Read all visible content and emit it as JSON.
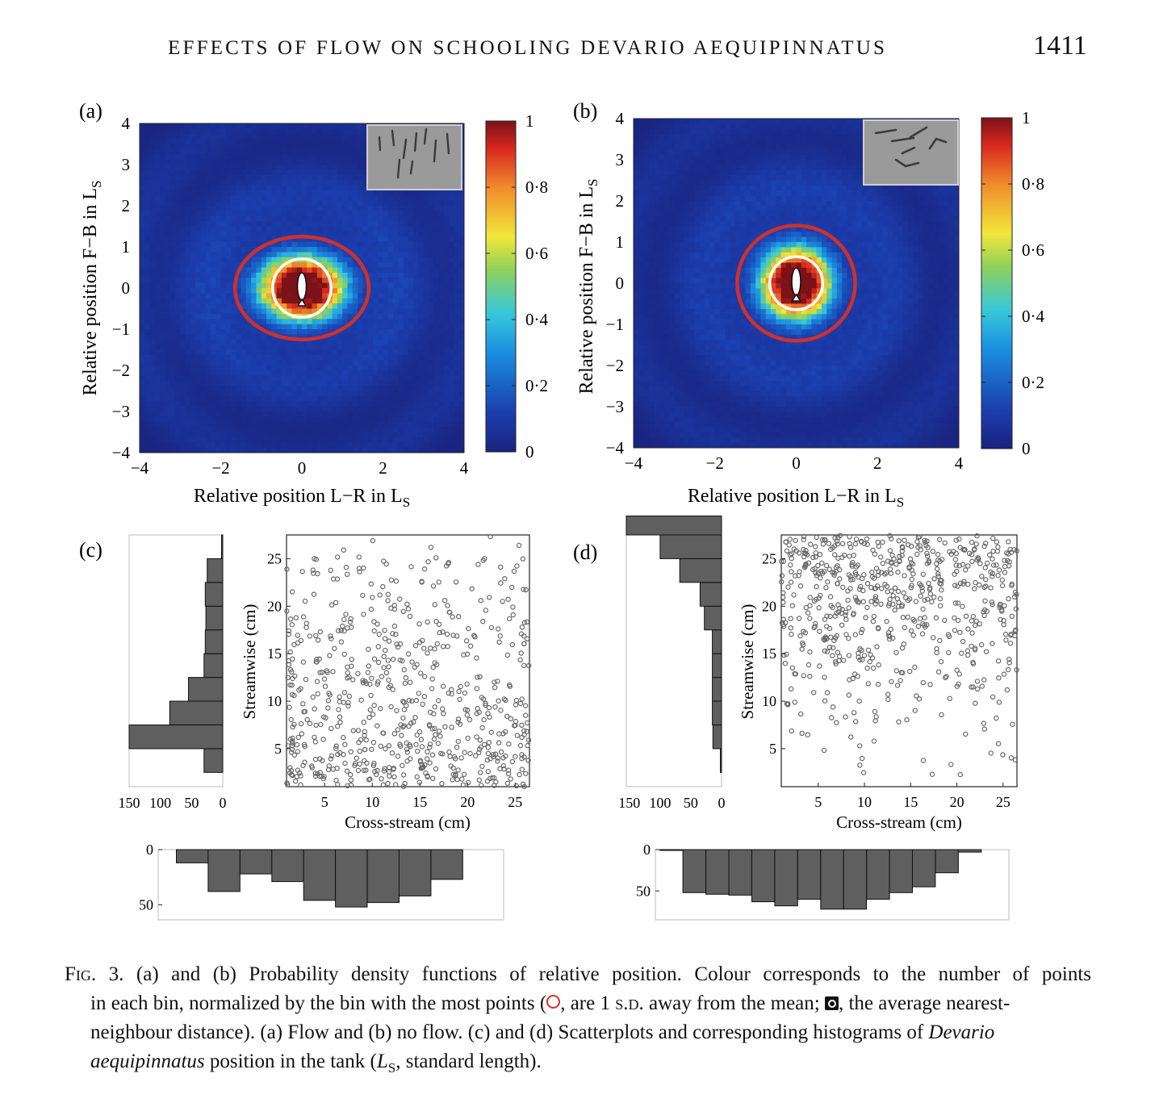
{
  "header": {
    "title": "EFFECTS OF FLOW ON SCHOOLING DEVARIO AEQUIPINNATUS",
    "page_number": "1411"
  },
  "panels": {
    "a": {
      "label": "(a)"
    },
    "b": {
      "label": "(b)"
    },
    "c": {
      "label": "(c)"
    },
    "d": {
      "label": "(d)"
    }
  },
  "caption": {
    "fig_label": "Fig. 3.",
    "part1": "(a) and (b) Probability density functions of relative position. Colour corresponds to the number of points",
    "part2": "in each bin, normalized by the bin with the most points (",
    "part3": ", are 1",
    "sd": "s.d.",
    "part4": "away from the mean;",
    "part5": ", the average",
    "part6": "nearest-neighbour distance). (a) Flow and (b) no flow. (c) and (d) Scatterplots and corresponding histograms",
    "part7": "of",
    "species": "Devario aequipinnatus",
    "part8": "position in the tank (",
    "ls_l": "L",
    "ls_s": "S",
    "part9": ", standard length)."
  },
  "colors": {
    "red_circle": "#d0302a",
    "white_circle": "#ffffff",
    "bar_fill": "#5f5f5f",
    "marker": "#666666"
  },
  "chart_data": [
    {
      "id": "a",
      "type": "heatmap",
      "xlabel": "Relative position L−R in L",
      "xlabel_sub": "S",
      "ylabel": "Relative position F−B in L",
      "ylabel_sub": "S",
      "xlim": [
        -4,
        4
      ],
      "ylim": [
        -4,
        4
      ],
      "xticks": [
        "−4",
        "−2",
        "0",
        "2",
        "4"
      ],
      "yticks": [
        "4",
        "3",
        "2",
        "1",
        "0",
        "−1",
        "−2",
        "−3",
        "−4"
      ],
      "colorbar": {
        "range": [
          0,
          1
        ],
        "ticks": [
          "1",
          "0·8",
          "0·6",
          "0·4",
          "0·2",
          "0"
        ]
      },
      "peak_center": [
        0,
        0
      ],
      "spread_x": 0.85,
      "spread_y": 0.62,
      "sd_ellipse_radius": [
        1.65,
        1.25
      ],
      "nnd_circle_radius": 0.72
    },
    {
      "id": "b",
      "type": "heatmap",
      "xlabel": "Relative position L−R in L",
      "xlabel_sub": "S",
      "ylabel": "Relative position F−B in L",
      "ylabel_sub": "S",
      "xlim": [
        -4,
        4
      ],
      "ylim": [
        -4,
        4
      ],
      "xticks": [
        "−4",
        "−2",
        "0",
        "2",
        "4"
      ],
      "yticks": [
        "4",
        "3",
        "2",
        "1",
        "0",
        "−1",
        "−2",
        "−3",
        "−4"
      ],
      "colorbar": {
        "range": [
          0,
          1
        ],
        "ticks": [
          "1",
          "0·8",
          "0·6",
          "0·4",
          "0·2",
          "0"
        ]
      },
      "peak_center": [
        0,
        0
      ],
      "spread_x": 0.7,
      "spread_y": 0.7,
      "sd_ellipse_radius": [
        1.45,
        1.4
      ],
      "nnd_circle_radius": 0.65
    },
    {
      "id": "c",
      "type": "scatter",
      "xlabel": "Cross-stream (cm)",
      "ylabel": "Streamwise (cm)",
      "xlim": [
        1,
        26.5
      ],
      "ylim": [
        1,
        27.5
      ],
      "xticks": [
        "5",
        "10",
        "15",
        "20",
        "25"
      ],
      "yticks": [
        "5",
        "10",
        "15",
        "20",
        "25"
      ],
      "n_points": 640,
      "distribution": "denser at low streamwise values",
      "hist_streamwise": {
        "ticks": [
          "150",
          "100",
          "50",
          "0"
        ],
        "bins": [
          [
            2.5,
            5,
            30
          ],
          [
            5,
            7.5,
            150
          ],
          [
            7.5,
            10,
            85
          ],
          [
            10,
            12.5,
            55
          ],
          [
            12.5,
            15,
            30
          ],
          [
            15,
            17.5,
            28
          ],
          [
            17.5,
            20,
            27
          ],
          [
            20,
            22.5,
            28
          ],
          [
            22.5,
            25,
            25
          ],
          [
            25,
            27.5,
            2
          ]
        ]
      },
      "hist_crossstream": {
        "ticks": [
          "0",
          "50"
        ],
        "bins": [
          [
            2,
            5.5,
            12
          ],
          [
            5.5,
            9,
            38
          ],
          [
            9,
            12.5,
            22
          ],
          [
            12.5,
            16,
            29
          ],
          [
            16,
            19.5,
            46
          ],
          [
            19.5,
            23,
            52
          ],
          [
            23,
            26.5,
            48
          ],
          [
            26.5,
            30,
            42
          ],
          [
            30,
            33.5,
            27
          ]
        ]
      }
    },
    {
      "id": "d",
      "type": "scatter",
      "xlabel": "Cross-stream (cm)",
      "ylabel": "Streamwise (cm)",
      "xlim": [
        1,
        26.5
      ],
      "ylim": [
        1,
        27.5
      ],
      "xticks": [
        "5",
        "10",
        "15",
        "20",
        "25"
      ],
      "yticks": [
        "5",
        "10",
        "15",
        "20",
        "25"
      ],
      "n_points": 640,
      "distribution": "denser at high streamwise values",
      "hist_streamwise": {
        "ticks": [
          "150",
          "100",
          "50",
          "0"
        ],
        "bins": [
          [
            2.5,
            5,
            2
          ],
          [
            5,
            7.5,
            14
          ],
          [
            7.5,
            10,
            15
          ],
          [
            10,
            12.5,
            15
          ],
          [
            12.5,
            15,
            15
          ],
          [
            15,
            17.5,
            15
          ],
          [
            17.5,
            20,
            28
          ],
          [
            20,
            22.5,
            35
          ],
          [
            22.5,
            25,
            68
          ],
          [
            25,
            27.5,
            100
          ],
          [
            27.5,
            30,
            155
          ],
          [
            30,
            32.5,
            22
          ]
        ]
      },
      "hist_crossstream": {
        "ticks": [
          "0",
          "50"
        ],
        "bins": [
          [
            0,
            2.5,
            1
          ],
          [
            2.5,
            5,
            52
          ],
          [
            5,
            7.5,
            54
          ],
          [
            7.5,
            10,
            55
          ],
          [
            10,
            12.5,
            63
          ],
          [
            12.5,
            15,
            68
          ],
          [
            15,
            17.5,
            60
          ],
          [
            17.5,
            20,
            72
          ],
          [
            20,
            22.5,
            72
          ],
          [
            22.5,
            25,
            60
          ],
          [
            25,
            27.5,
            52
          ],
          [
            27.5,
            30,
            45
          ],
          [
            30,
            32.5,
            28
          ],
          [
            32.5,
            35,
            3
          ]
        ]
      }
    }
  ]
}
